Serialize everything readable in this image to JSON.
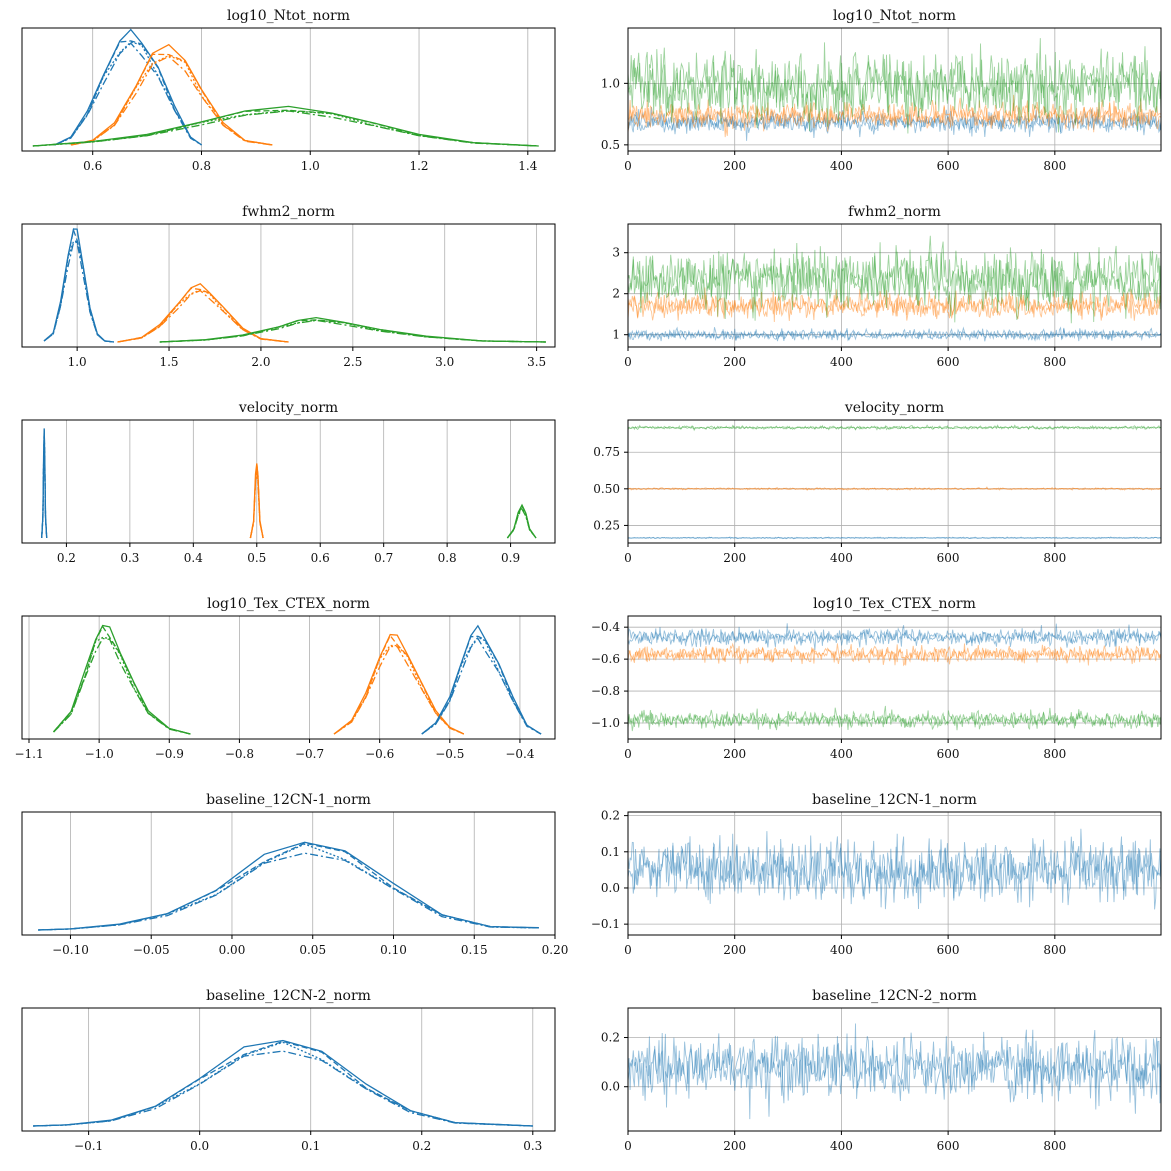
{
  "colors": {
    "blue": "#1f77b4",
    "orange": "#ff7f0e",
    "green": "#2ca02c",
    "grid": "#b0b0b0"
  },
  "chart_data": [
    {
      "type": "line",
      "title": "log10_Ntot_norm",
      "xlim": [
        0.47,
        1.45
      ],
      "xticks": [
        "0.6",
        "0.8",
        "1.0",
        "1.2",
        "1.4"
      ],
      "grid": "vertical",
      "series": [
        {
          "color": "blue",
          "x": [
            0.53,
            0.56,
            0.59,
            0.62,
            0.65,
            0.67,
            0.69,
            0.72,
            0.75,
            0.78,
            0.8
          ],
          "y": [
            0.01,
            0.08,
            0.3,
            0.65,
            0.93,
            1.0,
            0.94,
            0.7,
            0.35,
            0.08,
            0.01
          ]
        },
        {
          "color": "orange",
          "x": [
            0.56,
            0.6,
            0.64,
            0.68,
            0.71,
            0.74,
            0.77,
            0.8,
            0.84,
            0.88,
            0.93
          ],
          "y": [
            0.01,
            0.05,
            0.2,
            0.55,
            0.82,
            0.87,
            0.78,
            0.5,
            0.2,
            0.05,
            0.01
          ]
        },
        {
          "color": "green",
          "x": [
            0.49,
            0.6,
            0.7,
            0.8,
            0.88,
            0.96,
            1.04,
            1.12,
            1.2,
            1.3,
            1.42
          ],
          "y": [
            0.0,
            0.04,
            0.1,
            0.22,
            0.31,
            0.34,
            0.3,
            0.2,
            0.1,
            0.03,
            0.0
          ]
        }
      ]
    },
    {
      "type": "line",
      "title": "log10_Ntot_norm",
      "xlim": [
        0,
        999
      ],
      "xticks": [
        "0",
        "200",
        "400",
        "600",
        "800"
      ],
      "ylim": [
        0.45,
        1.45
      ],
      "yticks": [
        "0.5",
        "1.0"
      ],
      "grid": "both",
      "series": [
        {
          "color": "blue",
          "mean": 0.68,
          "spread": 0.04
        },
        {
          "color": "orange",
          "mean": 0.74,
          "spread": 0.05
        },
        {
          "color": "green",
          "mean": 0.97,
          "spread": 0.13
        }
      ]
    },
    {
      "type": "line",
      "title": "fwhm2_norm",
      "xlim": [
        0.7,
        3.6
      ],
      "xticks": [
        "1.0",
        "1.5",
        "2.0",
        "2.5",
        "3.0",
        "3.5"
      ],
      "grid": "vertical",
      "series": [
        {
          "color": "blue",
          "x": [
            0.82,
            0.87,
            0.91,
            0.95,
            0.98,
            1.0,
            1.03,
            1.07,
            1.11,
            1.15,
            1.2
          ],
          "y": [
            0.01,
            0.08,
            0.35,
            0.78,
            1.0,
            0.97,
            0.72,
            0.3,
            0.07,
            0.01,
            0.0
          ]
        },
        {
          "color": "orange",
          "x": [
            1.22,
            1.35,
            1.45,
            1.55,
            1.62,
            1.67,
            1.72,
            1.8,
            1.9,
            2.0,
            2.15
          ],
          "y": [
            0.0,
            0.04,
            0.15,
            0.35,
            0.48,
            0.5,
            0.45,
            0.3,
            0.12,
            0.03,
            0.0
          ]
        },
        {
          "color": "green",
          "x": [
            1.45,
            1.7,
            1.9,
            2.1,
            2.2,
            2.3,
            2.45,
            2.65,
            2.9,
            3.2,
            3.55
          ],
          "y": [
            0.0,
            0.02,
            0.06,
            0.14,
            0.19,
            0.21,
            0.18,
            0.11,
            0.05,
            0.01,
            0.0
          ]
        }
      ]
    },
    {
      "type": "line",
      "title": "fwhm2_norm",
      "xlim": [
        0,
        999
      ],
      "xticks": [
        "0",
        "200",
        "400",
        "600",
        "800"
      ],
      "ylim": [
        0.7,
        3.7
      ],
      "yticks": [
        "1",
        "2",
        "3"
      ],
      "grid": "both",
      "series": [
        {
          "color": "blue",
          "mean": 1.0,
          "spread": 0.06
        },
        {
          "color": "orange",
          "mean": 1.7,
          "spread": 0.15
        },
        {
          "color": "green",
          "mean": 2.35,
          "spread": 0.35
        }
      ]
    },
    {
      "type": "line",
      "title": "velocity_norm",
      "xlim": [
        0.13,
        0.97
      ],
      "xticks": [
        "0.2",
        "0.3",
        "0.4",
        "0.5",
        "0.6",
        "0.7",
        "0.8",
        "0.9"
      ],
      "grid": "vertical",
      "series": [
        {
          "color": "blue",
          "x": [
            0.161,
            0.163,
            0.164,
            0.165,
            0.166,
            0.167,
            0.169
          ],
          "y": [
            0.0,
            0.2,
            0.7,
            1.0,
            0.7,
            0.2,
            0.0
          ]
        },
        {
          "color": "orange",
          "x": [
            0.49,
            0.495,
            0.498,
            0.5,
            0.502,
            0.505,
            0.51
          ],
          "y": [
            0.0,
            0.15,
            0.55,
            0.68,
            0.55,
            0.15,
            0.0
          ]
        },
        {
          "color": "green",
          "x": [
            0.895,
            0.905,
            0.912,
            0.918,
            0.924,
            0.93,
            0.94
          ],
          "y": [
            0.0,
            0.08,
            0.22,
            0.3,
            0.22,
            0.08,
            0.0
          ]
        }
      ]
    },
    {
      "type": "line",
      "title": "velocity_norm",
      "xlim": [
        0,
        999
      ],
      "xticks": [
        "0",
        "200",
        "400",
        "600",
        "800"
      ],
      "ylim": [
        0.13,
        0.97
      ],
      "yticks": [
        "0.25",
        "0.50",
        "0.75"
      ],
      "grid": "both",
      "series": [
        {
          "color": "blue",
          "mean": 0.165,
          "spread": 0.002
        },
        {
          "color": "orange",
          "mean": 0.5,
          "spread": 0.003
        },
        {
          "color": "green",
          "mean": 0.918,
          "spread": 0.005
        }
      ]
    },
    {
      "type": "line",
      "title": "log10_Tex_CTEX_norm",
      "xlim": [
        -1.11,
        -0.35
      ],
      "xticks": [
        "−1.1",
        "−1.0",
        "−0.9",
        "−0.8",
        "−0.7",
        "−0.6",
        "−0.5",
        "−0.4"
      ],
      "grid": "vertical",
      "series": [
        {
          "color": "green",
          "x": [
            -1.065,
            -1.04,
            -1.02,
            -1.005,
            -0.995,
            -0.985,
            -0.97,
            -0.95,
            -0.93,
            -0.9,
            -0.87
          ],
          "y": [
            0.02,
            0.2,
            0.55,
            0.86,
            0.96,
            0.92,
            0.74,
            0.45,
            0.2,
            0.05,
            0.0
          ]
        },
        {
          "color": "orange",
          "x": [
            -0.665,
            -0.64,
            -0.62,
            -0.6,
            -0.585,
            -0.575,
            -0.56,
            -0.54,
            -0.52,
            -0.5,
            -0.48
          ],
          "y": [
            0.0,
            0.12,
            0.35,
            0.7,
            0.88,
            0.85,
            0.72,
            0.45,
            0.2,
            0.06,
            0.0
          ]
        },
        {
          "color": "blue",
          "x": [
            -0.54,
            -0.52,
            -0.5,
            -0.485,
            -0.47,
            -0.46,
            -0.45,
            -0.43,
            -0.41,
            -0.39,
            -0.37
          ],
          "y": [
            0.0,
            0.1,
            0.32,
            0.62,
            0.87,
            0.93,
            0.87,
            0.62,
            0.32,
            0.08,
            0.0
          ]
        }
      ]
    },
    {
      "type": "line",
      "title": "log10_Tex_CTEX_norm",
      "xlim": [
        0,
        999
      ],
      "xticks": [
        "0",
        "200",
        "400",
        "600",
        "800"
      ],
      "ylim": [
        -1.1,
        -0.33
      ],
      "yticks": [
        "−1.0",
        "−0.8",
        "−0.6",
        "−0.4"
      ],
      "grid": "both",
      "series": [
        {
          "color": "blue",
          "mean": -0.46,
          "spread": 0.025
        },
        {
          "color": "orange",
          "mean": -0.57,
          "spread": 0.025
        },
        {
          "color": "green",
          "mean": -0.98,
          "spread": 0.025
        }
      ]
    },
    {
      "type": "line",
      "title": "baseline_12CN-1_norm",
      "xlim": [
        -0.13,
        0.2
      ],
      "xticks": [
        "−0.10",
        "−0.05",
        "0.00",
        "0.05",
        "0.10",
        "0.15",
        "0.20"
      ],
      "grid": "vertical",
      "series": [
        {
          "color": "blue",
          "x": [
            -0.12,
            -0.1,
            -0.07,
            -0.04,
            -0.01,
            0.02,
            0.045,
            0.07,
            0.1,
            0.13,
            0.16,
            0.19
          ],
          "y": [
            0.0,
            0.01,
            0.05,
            0.15,
            0.35,
            0.65,
            0.8,
            0.7,
            0.4,
            0.14,
            0.03,
            0.02
          ]
        }
      ]
    },
    {
      "type": "line",
      "title": "baseline_12CN-1_norm",
      "xlim": [
        0,
        999
      ],
      "xticks": [
        "0",
        "200",
        "400",
        "600",
        "800"
      ],
      "ylim": [
        -0.13,
        0.21
      ],
      "yticks": [
        "−0.1",
        "0.0",
        "0.1",
        "0.2"
      ],
      "grid": "both",
      "series": [
        {
          "color": "blue",
          "mean": 0.05,
          "spread": 0.04
        }
      ]
    },
    {
      "type": "line",
      "title": "baseline_12CN-2_norm",
      "xlim": [
        -0.16,
        0.32
      ],
      "xticks": [
        "−0.1",
        "0.0",
        "0.1",
        "0.2",
        "0.3"
      ],
      "grid": "vertical",
      "series": [
        {
          "color": "blue",
          "x": [
            -0.15,
            -0.12,
            -0.08,
            -0.04,
            0.0,
            0.04,
            0.075,
            0.11,
            0.15,
            0.19,
            0.23,
            0.3
          ],
          "y": [
            0.0,
            0.01,
            0.05,
            0.18,
            0.42,
            0.68,
            0.78,
            0.66,
            0.36,
            0.14,
            0.03,
            0.0
          ]
        }
      ]
    },
    {
      "type": "line",
      "title": "baseline_12CN-2_norm",
      "xlim": [
        0,
        999
      ],
      "xticks": [
        "0",
        "200",
        "400",
        "600",
        "800"
      ],
      "ylim": [
        -0.18,
        0.32
      ],
      "yticks": [
        "0.0",
        "0.2"
      ],
      "grid": "both",
      "series": [
        {
          "color": "blue",
          "mean": 0.08,
          "spread": 0.06
        }
      ]
    }
  ]
}
